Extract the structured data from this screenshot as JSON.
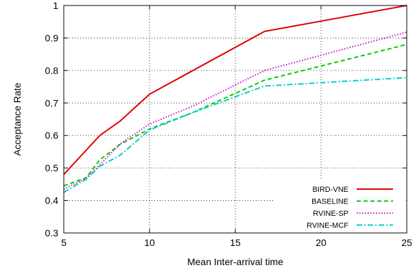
{
  "chart_data": {
    "type": "line",
    "title": "",
    "xlabel": "Mean Inter-arrival time",
    "ylabel": "Acceptance Rate",
    "xlim": [
      5,
      25
    ],
    "ylim": [
      0.3,
      1
    ],
    "xticks": [
      5,
      10,
      15,
      20,
      25
    ],
    "xtick_labels": [
      "5",
      "10",
      "15",
      "20",
      "25"
    ],
    "yticks": [
      0.3,
      0.4,
      0.5,
      0.6,
      0.7,
      0.8,
      0.9,
      1
    ],
    "ytick_labels": [
      "0.3",
      "0.4",
      "0.5",
      "0.6",
      "0.7",
      "0.8",
      "0.9",
      "1"
    ],
    "grid": true,
    "legend_position": "bottom-right",
    "series": [
      {
        "name": "BIRD-VNE",
        "color": "#dd0000",
        "dash": "solid",
        "x": [
          5,
          7.1,
          8.3,
          10,
          16.7,
          25
        ],
        "y": [
          0.48,
          0.6,
          0.645,
          0.727,
          0.92,
          1.0
        ]
      },
      {
        "name": "BASELINE",
        "color": "#00cc00",
        "dash": "dashed",
        "x": [
          5,
          6.3,
          7.1,
          8.3,
          10,
          12.5,
          16.7,
          25
        ],
        "y": [
          0.445,
          0.47,
          0.525,
          0.573,
          0.62,
          0.67,
          0.77,
          0.88
        ]
      },
      {
        "name": "RVINE-SP",
        "color": "#cc00cc",
        "dash": "dotted",
        "x": [
          5,
          6.3,
          7.1,
          8.3,
          10,
          12.5,
          16.7,
          25
        ],
        "y": [
          0.435,
          0.468,
          0.51,
          0.575,
          0.635,
          0.69,
          0.8,
          0.918
        ]
      },
      {
        "name": "RVINE-MCF",
        "color": "#00cccc",
        "dash": "dashdot",
        "x": [
          5,
          6.3,
          7.1,
          8.3,
          10,
          12.5,
          16.7,
          25
        ],
        "y": [
          0.425,
          0.465,
          0.505,
          0.54,
          0.617,
          0.67,
          0.752,
          0.778
        ]
      }
    ]
  }
}
